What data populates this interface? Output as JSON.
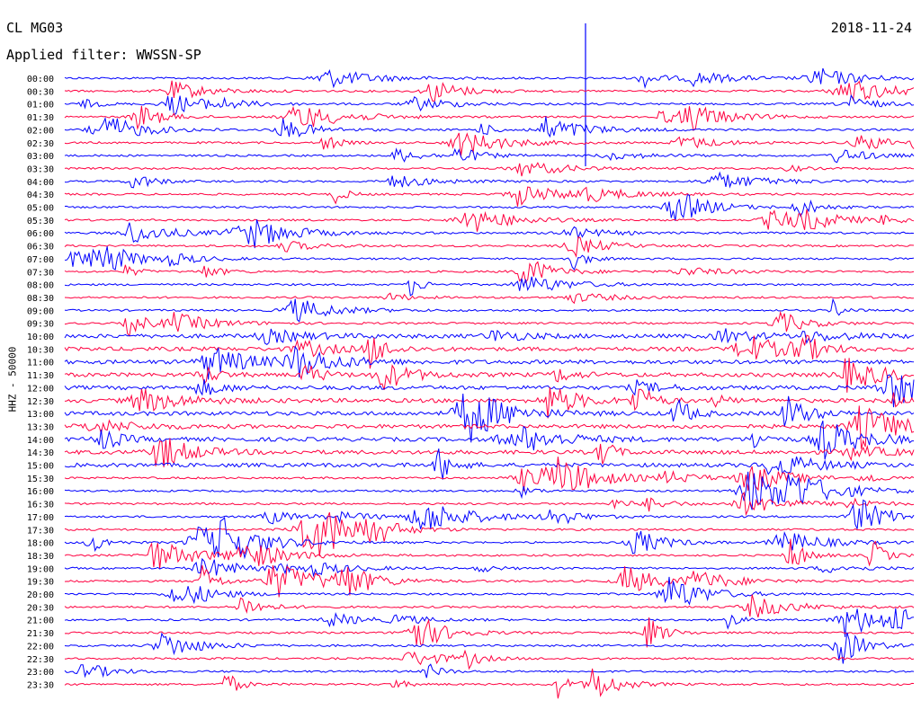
{
  "header": {
    "station": "CL MG03",
    "date": "2018-11-24",
    "filter": "Applied filter: WWSSN-SP"
  },
  "chart_data": {
    "type": "line",
    "ylabel": "HHZ - 50000",
    "trace_colors": [
      "#0000ff",
      "#ff0040"
    ],
    "time_labels": [
      "00:00",
      "00:30",
      "01:00",
      "01:30",
      "02:00",
      "02:30",
      "03:00",
      "03:30",
      "04:00",
      "04:30",
      "05:00",
      "05:30",
      "06:00",
      "06:30",
      "07:00",
      "07:30",
      "08:00",
      "08:30",
      "09:00",
      "09:30",
      "10:00",
      "10:30",
      "11:00",
      "11:30",
      "12:00",
      "12:30",
      "13:00",
      "13:30",
      "14:00",
      "14:30",
      "15:00",
      "15:30",
      "16:00",
      "16:30",
      "17:00",
      "17:30",
      "18:00",
      "18:30",
      "19:00",
      "19:30",
      "20:00",
      "20:30",
      "21:00",
      "21:30",
      "22:00",
      "22:30",
      "23:00",
      "23:30"
    ]
  }
}
